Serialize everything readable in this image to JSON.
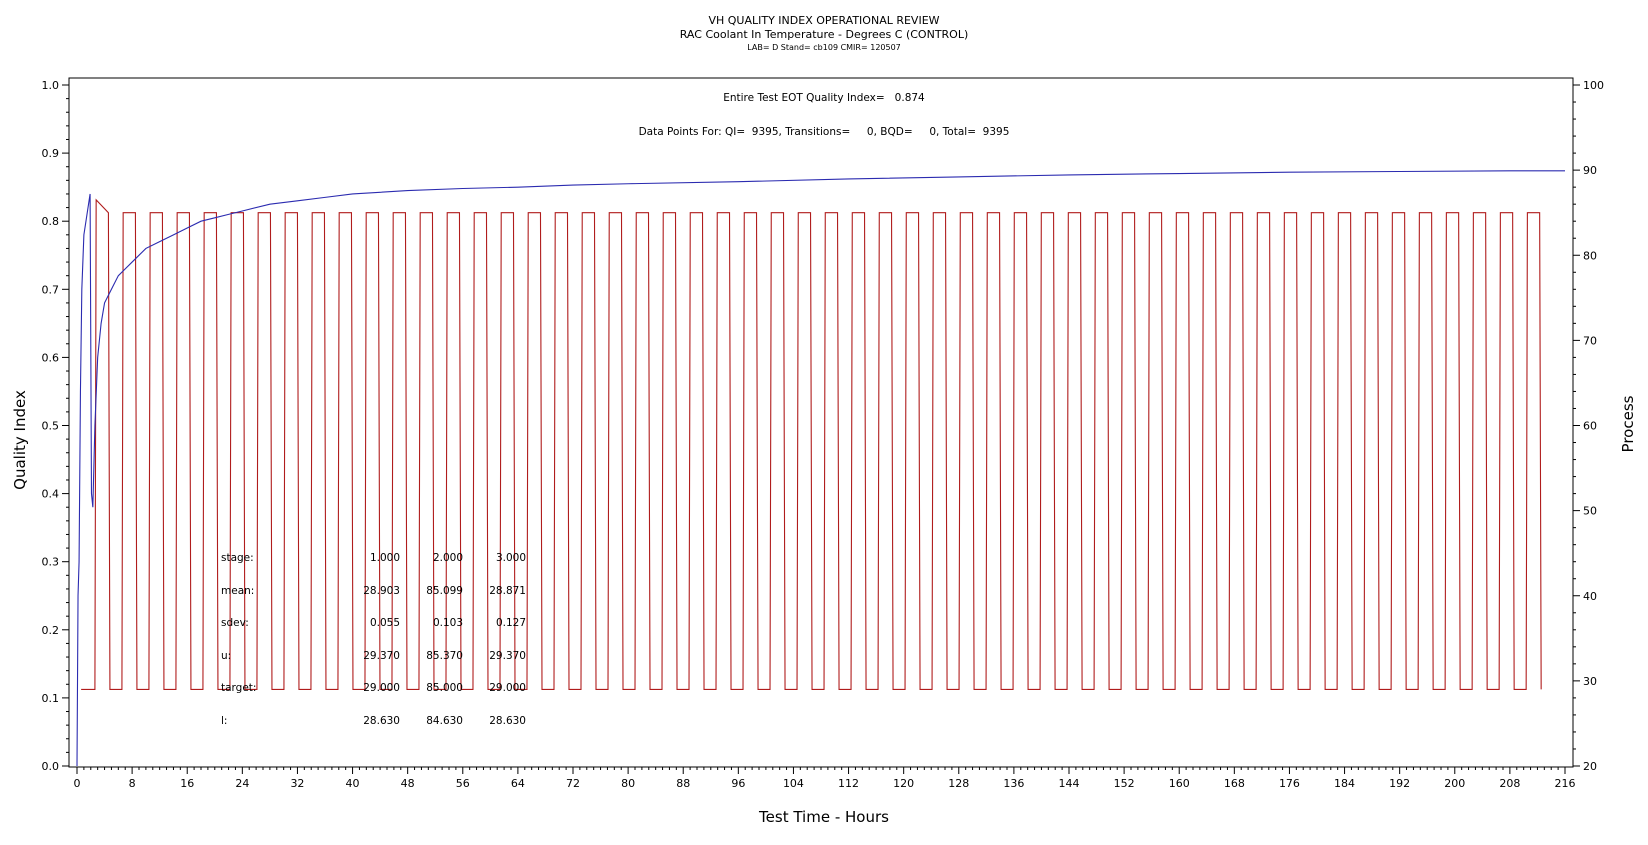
{
  "header": {
    "title": "VH QUALITY INDEX OPERATIONAL REVIEW",
    "subtitle": "RAC Coolant In Temperature - Degrees C (CONTROL)",
    "meta": "LAB= D Stand= cb109 CMIR= 120507"
  },
  "annotations": {
    "qi_line": "Entire Test EOT Quality Index=   0.874",
    "data_points_line": "Data Points For: QI=  9395, Transitions=     0, BQD=     0, Total=  9395"
  },
  "stats_table": {
    "rows": [
      {
        "label": "stage:",
        "values": [
          "1.000",
          "2.000",
          "3.000"
        ]
      },
      {
        "label": "mean:",
        "values": [
          "28.903",
          "85.099",
          "28.871"
        ]
      },
      {
        "label": "sdev:",
        "values": [
          "0.055",
          "0.103",
          "0.127"
        ]
      },
      {
        "label": "u:",
        "values": [
          "29.370",
          "85.370",
          "29.370"
        ]
      },
      {
        "label": "target:",
        "values": [
          "29.000",
          "85.000",
          "29.000"
        ]
      },
      {
        "label": "l:",
        "values": [
          "28.630",
          "84.630",
          "28.630"
        ]
      }
    ]
  },
  "chart_data": {
    "type": "line",
    "title": "VH QUALITY INDEX OPERATIONAL REVIEW",
    "xlabel": "Test Time - Hours",
    "ylabel": "Quality Index",
    "y2label": "Process",
    "xlim": [
      0,
      216
    ],
    "ylim": [
      0,
      1
    ],
    "y2lim": [
      20,
      100
    ],
    "xticks": [
      0,
      8,
      16,
      24,
      32,
      40,
      48,
      56,
      64,
      72,
      80,
      88,
      96,
      104,
      112,
      120,
      128,
      136,
      144,
      152,
      160,
      168,
      176,
      184,
      192,
      200,
      208,
      216
    ],
    "yticks": [
      "0.0",
      "0.1",
      "0.2",
      "0.3",
      "0.4",
      "0.5",
      "0.6",
      "0.7",
      "0.8",
      "0.9",
      "1.0"
    ],
    "y2ticks": [
      20,
      30,
      40,
      50,
      60,
      70,
      80,
      90,
      100
    ],
    "grid": false,
    "colors": {
      "quality_index": "#2b2bb0",
      "process": "#b01c1c"
    },
    "series": [
      {
        "axis": "left",
        "color": "#2b2bb0",
        "x": [
          0,
          0.15,
          0.3,
          0.5,
          0.7,
          1.0,
          1.3,
          1.6,
          1.9,
          2.1,
          2.3,
          2.6,
          3.0,
          3.5,
          4.0,
          5.0,
          6.0,
          7.0,
          8.0,
          10,
          12,
          14,
          16,
          18,
          20,
          22,
          24,
          28,
          32,
          36,
          40,
          48,
          56,
          64,
          72,
          80,
          96,
          112,
          128,
          144,
          160,
          176,
          192,
          208,
          216
        ],
        "y": [
          0.0,
          0.25,
          0.3,
          0.55,
          0.7,
          0.78,
          0.8,
          0.82,
          0.84,
          0.4,
          0.38,
          0.5,
          0.6,
          0.65,
          0.68,
          0.7,
          0.72,
          0.73,
          0.74,
          0.76,
          0.77,
          0.78,
          0.79,
          0.8,
          0.805,
          0.81,
          0.815,
          0.825,
          0.83,
          0.835,
          0.84,
          0.845,
          0.848,
          0.85,
          0.853,
          0.855,
          0.858,
          0.862,
          0.865,
          0.868,
          0.87,
          0.872,
          0.873,
          0.874,
          0.874
        ]
      },
      {
        "axis": "right",
        "color": "#b01c1c",
        "cycle_start_hours": 2.6,
        "cycle_period_hours": 3.92,
        "cycle_count": 54,
        "high_level": 85,
        "low_level": 29,
        "initial_peak": 86.5
      }
    ]
  }
}
